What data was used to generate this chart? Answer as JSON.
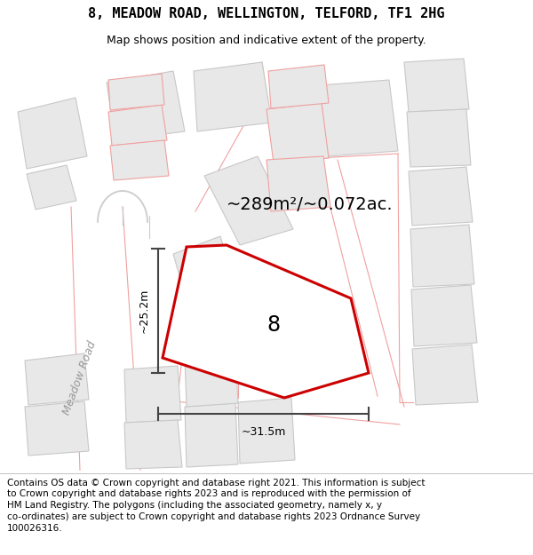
{
  "title": "8, MEADOW ROAD, WELLINGTON, TELFORD, TF1 2HG",
  "subtitle": "Map shows position and indicative extent of the property.",
  "footer": "Contains OS data © Crown copyright and database right 2021. This information is subject\nto Crown copyright and database rights 2023 and is reproduced with the permission of\nHM Land Registry. The polygons (including the associated geometry, namely x, y\nco-ordinates) are subject to Crown copyright and database rights 2023 Ordnance Survey\n100026316.",
  "area_label": "~289m²/~0.072ac.",
  "number_label": "8",
  "dim_vertical": "~25.2m",
  "dim_horizontal": "~31.5m",
  "road_label": "Meadow Road",
  "bg_color": "#ffffff",
  "subject_edge": "#cc0000",
  "dim_color": "#444444",
  "bld_fill": "#e8e8e8",
  "bld_edge_gray": "#c8c8c8",
  "bld_edge_pink": "#f0a0a0",
  "road_pink": "#f0a0a0",
  "title_fontsize": 11,
  "subtitle_fontsize": 9,
  "footer_fontsize": 7.5,
  "area_fontsize": 14,
  "number_fontsize": 17,
  "dim_fontsize": 9,
  "road_label_fontsize": 9,
  "subject_pts_x": [
    220,
    185,
    195,
    330,
    415,
    405,
    310
  ],
  "subject_pts_y": [
    218,
    255,
    345,
    385,
    360,
    280,
    218
  ]
}
